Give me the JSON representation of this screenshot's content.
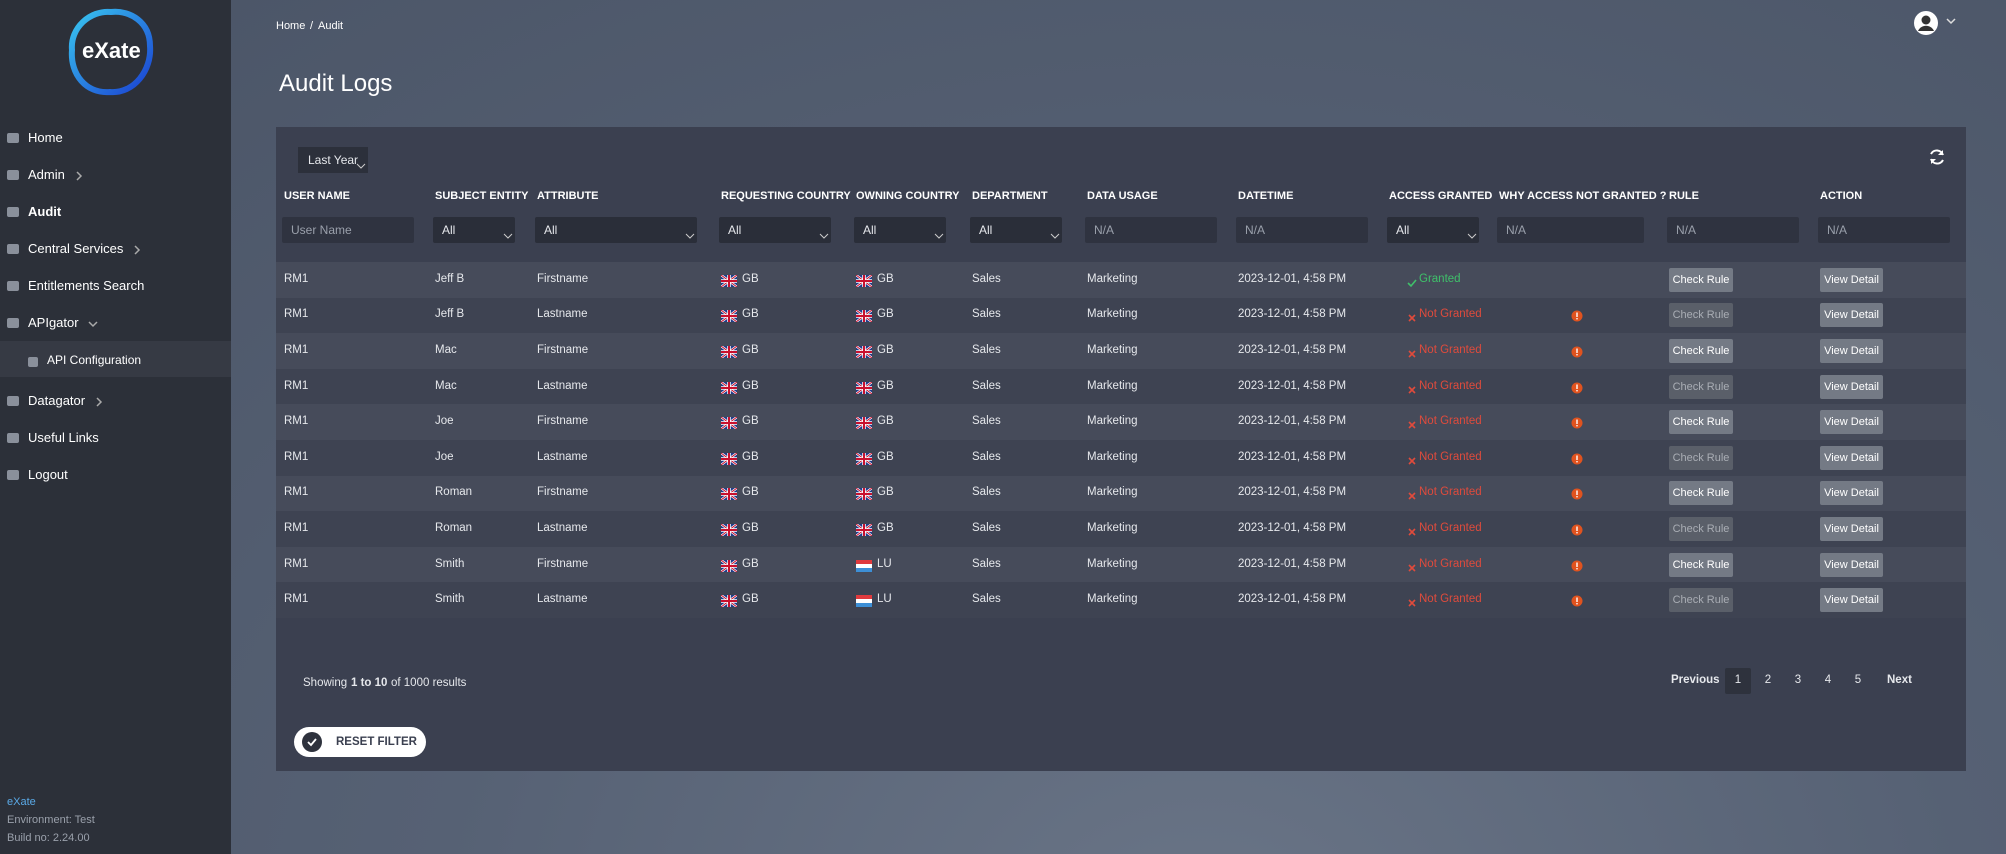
{
  "sidebar": {
    "logo": "eXate",
    "nav": [
      {
        "label": "Home",
        "arrow": false
      },
      {
        "label": "Admin",
        "arrow": true
      },
      {
        "label": "Audit",
        "arrow": false,
        "active": true
      },
      {
        "label": "Central Services",
        "arrow": true
      },
      {
        "label": "Entitlements Search",
        "arrow": false
      },
      {
        "label": "APIgator",
        "arrow": true,
        "open": true,
        "children": [
          "API Configuration"
        ]
      },
      {
        "label": "Datagator",
        "arrow": true
      },
      {
        "label": "Useful Links",
        "arrow": false
      },
      {
        "label": "Logout",
        "arrow": false
      }
    ],
    "footer": {
      "brand": "eXate",
      "environment": "Environment: Test",
      "build": "Build no: 2.24.00"
    }
  },
  "breadcrumb": [
    "Home",
    "/",
    "Audit"
  ],
  "title": "Audit Logs",
  "period": "Last Year",
  "columns": [
    "USER NAME",
    "SUBJECT ENTITY",
    "ATTRIBUTE",
    "REQUESTING COUNTRY",
    "OWNING COUNTRY",
    "DEPARTMENT",
    "DATA USAGE",
    "DATETIME",
    "ACCESS GRANTED",
    "WHY ACCESS NOT GRANTED ?",
    "RULE",
    "ACTION"
  ],
  "filters": [
    {
      "text": "User Name",
      "kind": "input"
    },
    {
      "text": "All",
      "kind": "select"
    },
    {
      "text": "All",
      "kind": "select"
    },
    {
      "text": "All",
      "kind": "select"
    },
    {
      "text": "All",
      "kind": "select"
    },
    {
      "text": "All",
      "kind": "select"
    },
    {
      "text": "N/A",
      "kind": "input"
    },
    {
      "text": "N/A",
      "kind": "input"
    },
    {
      "text": "All",
      "kind": "select"
    },
    {
      "text": "N/A",
      "kind": "input"
    },
    {
      "text": "N/A",
      "kind": "input"
    },
    {
      "text": "N/A",
      "kind": "input"
    }
  ],
  "rows": [
    {
      "user": "RM1",
      "subject": "Jeff B",
      "attribute": "Firstname",
      "requesting": "GB",
      "owning": "GB",
      "department": "Sales",
      "usage": "Marketing",
      "datetime": "2023-12-01, 4:58 PM",
      "access": {
        "label": "Granted",
        "ok": true
      },
      "rule": "Check Rule",
      "action": "View Detail"
    },
    {
      "user": "RM1",
      "subject": "Jeff B",
      "attribute": "Lastname",
      "requesting": "GB",
      "owning": "GB",
      "department": "Sales",
      "usage": "Marketing",
      "datetime": "2023-12-01, 4:58 PM",
      "access": {
        "label": "Not Granted",
        "ok": false
      },
      "rule": "Check Rule",
      "action": "View Detail"
    },
    {
      "user": "RM1",
      "subject": "Mac",
      "attribute": "Firstname",
      "requesting": "GB",
      "owning": "GB",
      "department": "Sales",
      "usage": "Marketing",
      "datetime": "2023-12-01, 4:58 PM",
      "access": {
        "label": "Not Granted",
        "ok": false
      },
      "rule": "Check Rule",
      "action": "View Detail"
    },
    {
      "user": "RM1",
      "subject": "Mac",
      "attribute": "Lastname",
      "requesting": "GB",
      "owning": "GB",
      "department": "Sales",
      "usage": "Marketing",
      "datetime": "2023-12-01, 4:58 PM",
      "access": {
        "label": "Not Granted",
        "ok": false
      },
      "rule": "Check Rule",
      "action": "View Detail"
    },
    {
      "user": "RM1",
      "subject": "Joe",
      "attribute": "Firstname",
      "requesting": "GB",
      "owning": "GB",
      "department": "Sales",
      "usage": "Marketing",
      "datetime": "2023-12-01, 4:58 PM",
      "access": {
        "label": "Not Granted",
        "ok": false
      },
      "rule": "Check Rule",
      "action": "View Detail"
    },
    {
      "user": "RM1",
      "subject": "Joe",
      "attribute": "Lastname",
      "requesting": "GB",
      "owning": "GB",
      "department": "Sales",
      "usage": "Marketing",
      "datetime": "2023-12-01, 4:58 PM",
      "access": {
        "label": "Not Granted",
        "ok": false
      },
      "rule": "Check Rule",
      "action": "View Detail"
    },
    {
      "user": "RM1",
      "subject": "Roman",
      "attribute": "Firstname",
      "requesting": "GB",
      "owning": "GB",
      "department": "Sales",
      "usage": "Marketing",
      "datetime": "2023-12-01, 4:58 PM",
      "access": {
        "label": "Not Granted",
        "ok": false
      },
      "rule": "Check Rule",
      "action": "View Detail"
    },
    {
      "user": "RM1",
      "subject": "Roman",
      "attribute": "Lastname",
      "requesting": "GB",
      "owning": "GB",
      "department": "Sales",
      "usage": "Marketing",
      "datetime": "2023-12-01, 4:58 PM",
      "access": {
        "label": "Not Granted",
        "ok": false
      },
      "rule": "Check Rule",
      "action": "View Detail"
    },
    {
      "user": "RM1",
      "subject": "Smith",
      "attribute": "Firstname",
      "requesting": "GB",
      "owning": "LU",
      "department": "Sales",
      "usage": "Marketing",
      "datetime": "2023-12-01, 4:58 PM",
      "access": {
        "label": "Not Granted",
        "ok": false
      },
      "rule": "Check Rule",
      "action": "View Detail"
    },
    {
      "user": "RM1",
      "subject": "Smith",
      "attribute": "Lastname",
      "requesting": "GB",
      "owning": "LU",
      "department": "Sales",
      "usage": "Marketing",
      "datetime": "2023-12-01, 4:58 PM",
      "access": {
        "label": "Not Granted",
        "ok": false
      },
      "rule": "Check Rule",
      "action": "View Detail"
    }
  ],
  "showing": {
    "prefix": "Showing",
    "range": "1 to 10",
    "suffix": "of 1000 results"
  },
  "pagination": {
    "previous": "Previous",
    "pages": [
      1,
      2,
      3,
      4,
      5
    ],
    "current": 1,
    "next": "Next"
  },
  "reset": "RESET FILTER"
}
